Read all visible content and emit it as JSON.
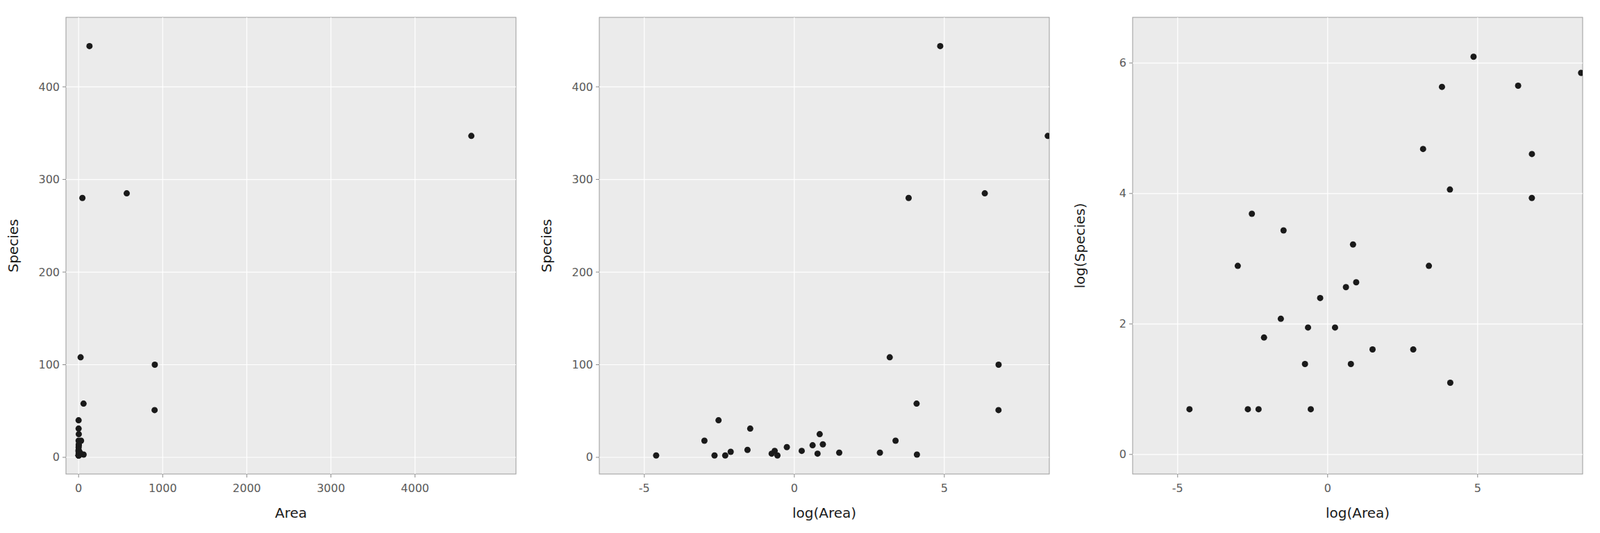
{
  "chart_data": [
    {
      "type": "scatter",
      "xlabel": "Area",
      "ylabel": "Species",
      "color": "#1a1a1a",
      "grid": true,
      "x": [
        58.93,
        0.23,
        59.6,
        2.33,
        0.1,
        0.05,
        17.35,
        0.08,
        0.57,
        0.52,
        29.22,
        0.78,
        2.17,
        903.82,
        1.84,
        2.59,
        572.33,
        0.12,
        0.47,
        0.01,
        0.07,
        4669.32,
        129.49,
        0.21,
        24.08,
        1.28,
        4.47,
        906.16,
        45.2
      ],
      "values": [
        58,
        31,
        3,
        25,
        2,
        18,
        5,
        40,
        2,
        7,
        18,
        11,
        4,
        51,
        13,
        14,
        285,
        6,
        4,
        2,
        2,
        347,
        444,
        8,
        108,
        7,
        5,
        100,
        280
      ],
      "xlim": [
        -150,
        5200
      ],
      "ylim": [
        -18,
        475
      ],
      "xticks": [
        0,
        1000,
        2000,
        3000,
        4000
      ],
      "yticks": [
        0,
        100,
        200,
        300,
        400
      ]
    },
    {
      "type": "scatter",
      "xlabel": "log(Area)",
      "ylabel": "Species",
      "color": "#1a1a1a",
      "grid": true,
      "x": [
        4.0764,
        -1.4697,
        4.0877,
        0.8459,
        -2.3026,
        -2.9957,
        2.8536,
        -2.5257,
        -0.5621,
        -0.6539,
        3.3749,
        -0.2485,
        0.7747,
        6.8066,
        0.6098,
        0.9517,
        6.3497,
        -2.1203,
        -0.755,
        -4.6052,
        -2.6593,
        8.4488,
        4.8636,
        -1.5606,
        3.1814,
        0.2469,
        1.4974,
        6.8092,
        3.8111
      ],
      "values": [
        58,
        31,
        3,
        25,
        2,
        18,
        5,
        40,
        2,
        7,
        18,
        11,
        4,
        51,
        13,
        14,
        285,
        6,
        4,
        2,
        2,
        347,
        444,
        8,
        108,
        7,
        5,
        100,
        280
      ],
      "xlim": [
        -6.5,
        8.5
      ],
      "ylim": [
        -18,
        475
      ],
      "xticks": [
        -5,
        0,
        5
      ],
      "yticks": [
        0,
        100,
        200,
        300,
        400
      ]
    },
    {
      "type": "scatter",
      "xlabel": "log(Area)",
      "ylabel": "log(Species)",
      "color": "#1a1a1a",
      "grid": true,
      "x": [
        4.0764,
        -1.4697,
        4.0877,
        0.8459,
        -2.3026,
        -2.9957,
        2.8536,
        -2.5257,
        -0.5621,
        -0.6539,
        3.3749,
        -0.2485,
        0.7747,
        6.8066,
        0.6098,
        0.9517,
        6.3497,
        -2.1203,
        -0.755,
        -4.6052,
        -2.6593,
        8.4488,
        4.8636,
        -1.5606,
        3.1814,
        0.2469,
        1.4974,
        6.8092,
        3.8111
      ],
      "values": [
        4.0604,
        3.434,
        1.0986,
        3.2189,
        0.6931,
        2.8904,
        1.6094,
        3.6889,
        0.6931,
        1.9459,
        2.8904,
        2.3979,
        1.3863,
        3.9318,
        2.5649,
        2.6391,
        5.6525,
        1.7918,
        1.3863,
        0.6931,
        0.6931,
        5.8493,
        6.0958,
        2.0794,
        4.6821,
        1.9459,
        1.6094,
        4.6052,
        5.6348
      ],
      "xlim": [
        -6.5,
        8.5
      ],
      "ylim": [
        -0.3,
        6.7
      ],
      "xticks": [
        -5,
        0,
        5
      ],
      "yticks": [
        0,
        2,
        4,
        6
      ]
    }
  ]
}
